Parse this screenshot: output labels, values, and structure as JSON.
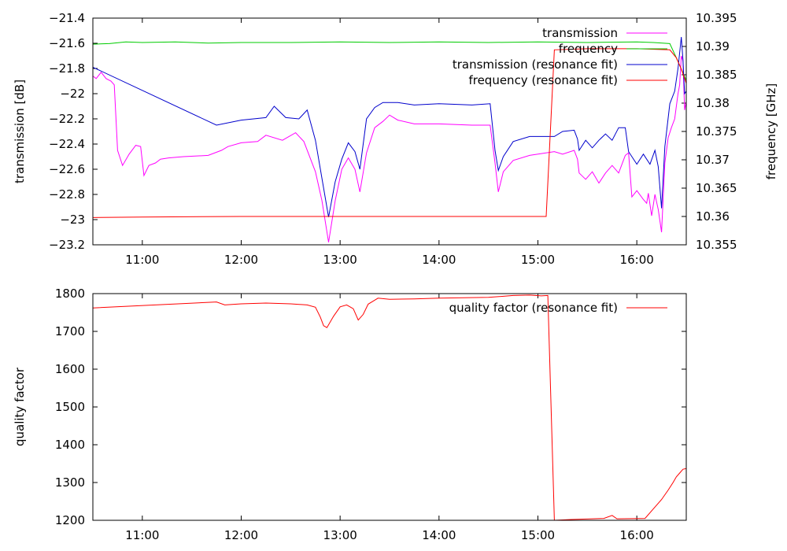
{
  "chart_data": [
    {
      "type": "line",
      "xlabel": "",
      "ylabel": "transmission [dB]",
      "y2label": "frequency [GHz]",
      "xlim": [
        "10:30",
        "16:30"
      ],
      "ylim": [
        -23.2,
        -21.4
      ],
      "y2lim": [
        10.355,
        10.395
      ],
      "x_ticks": [
        "11:00",
        "12:00",
        "13:00",
        "14:00",
        "15:00",
        "16:00"
      ],
      "y_ticks": [
        "-21.4",
        "-21.6",
        "-21.8",
        "-22",
        "-22.2",
        "-22.4",
        "-22.6",
        "-22.8",
        "-23",
        "-23.2"
      ],
      "y2_ticks": [
        "10.395",
        "10.39",
        "10.385",
        "10.38",
        "10.375",
        "10.37",
        "10.365",
        "10.36",
        "10.355"
      ],
      "legend_position": "top-right",
      "series": [
        {
          "name": "transmission",
          "axis": "y",
          "color": "#ff00ff",
          "points": [
            [
              "10:30",
              -21.86
            ],
            [
              "10:32",
              -21.88
            ],
            [
              "10:35",
              -21.83
            ],
            [
              "10:38",
              -21.88
            ],
            [
              "10:41",
              -21.9
            ],
            [
              "10:43",
              -21.93
            ],
            [
              "10:45",
              -22.45
            ],
            [
              "10:48",
              -22.57
            ],
            [
              "10:52",
              -22.48
            ],
            [
              "10:56",
              -22.41
            ],
            [
              "10:59",
              -22.42
            ],
            [
              "11:01",
              -22.65
            ],
            [
              "11:04",
              -22.57
            ],
            [
              "11:08",
              -22.55
            ],
            [
              "11:11",
              -22.52
            ],
            [
              "11:16",
              -22.51
            ],
            [
              "11:25",
              -22.5
            ],
            [
              "11:40",
              -22.49
            ],
            [
              "11:48",
              -22.45
            ],
            [
              "11:52",
              -22.42
            ],
            [
              "12:00",
              -22.39
            ],
            [
              "12:10",
              -22.38
            ],
            [
              "12:15",
              -22.33
            ],
            [
              "12:25",
              -22.37
            ],
            [
              "12:33",
              -22.31
            ],
            [
              "12:38",
              -22.38
            ],
            [
              "12:45",
              -22.62
            ],
            [
              "12:49",
              -22.85
            ],
            [
              "12:53",
              -23.18
            ],
            [
              "12:57",
              -22.85
            ],
            [
              "13:01",
              -22.6
            ],
            [
              "13:05",
              -22.51
            ],
            [
              "13:09",
              -22.6
            ],
            [
              "13:12",
              -22.78
            ],
            [
              "13:16",
              -22.47
            ],
            [
              "13:21",
              -22.27
            ],
            [
              "13:26",
              -22.22
            ],
            [
              "13:30",
              -22.17
            ],
            [
              "13:35",
              -22.21
            ],
            [
              "13:45",
              -22.24
            ],
            [
              "14:00",
              -22.24
            ],
            [
              "14:20",
              -22.25
            ],
            [
              "14:31",
              -22.25
            ],
            [
              "14:34",
              -22.55
            ],
            [
              "14:36",
              -22.78
            ],
            [
              "14:39",
              -22.62
            ],
            [
              "14:45",
              -22.53
            ],
            [
              "14:55",
              -22.49
            ],
            [
              "15:10",
              -22.46
            ],
            [
              "15:15",
              -22.48
            ],
            [
              "15:22",
              -22.45
            ],
            [
              "15:24",
              -22.52
            ],
            [
              "15:25",
              -22.63
            ],
            [
              "15:29",
              -22.68
            ],
            [
              "15:33",
              -22.62
            ],
            [
              "15:37",
              -22.71
            ],
            [
              "15:41",
              -22.63
            ],
            [
              "15:45",
              -22.57
            ],
            [
              "15:49",
              -22.63
            ],
            [
              "15:53",
              -22.49
            ],
            [
              "15:55",
              -22.47
            ],
            [
              "15:57",
              -22.82
            ],
            [
              "16:00",
              -22.77
            ],
            [
              "16:04",
              -22.84
            ],
            [
              "16:06",
              -22.87
            ],
            [
              "16:07",
              -22.79
            ],
            [
              "16:09",
              -22.97
            ],
            [
              "16:11",
              -22.8
            ],
            [
              "16:13",
              -22.92
            ],
            [
              "16:15",
              -23.1
            ],
            [
              "16:17",
              -22.55
            ],
            [
              "16:19",
              -22.35
            ],
            [
              "16:21",
              -22.27
            ],
            [
              "16:23",
              -22.2
            ],
            [
              "16:25",
              -22.0
            ],
            [
              "16:26",
              -21.93
            ],
            [
              "16:27",
              -21.7
            ],
            [
              "16:28",
              -21.74
            ],
            [
              "16:29",
              -22.13
            ],
            [
              "16:30",
              -22.06
            ]
          ]
        },
        {
          "name": "frequency",
          "axis": "y2",
          "color": "#00cc00",
          "points": [
            [
              "10:30",
              10.3904
            ],
            [
              "10:40",
              10.3905
            ],
            [
              "10:50",
              10.3908
            ],
            [
              "11:00",
              10.3907
            ],
            [
              "11:20",
              10.3908
            ],
            [
              "11:40",
              10.3906
            ],
            [
              "12:00",
              10.3907
            ],
            [
              "12:30",
              10.3907
            ],
            [
              "13:00",
              10.3908
            ],
            [
              "13:30",
              10.3907
            ],
            [
              "14:00",
              10.3908
            ],
            [
              "14:30",
              10.3907
            ],
            [
              "15:00",
              10.3908
            ],
            [
              "15:30",
              10.3907
            ],
            [
              "16:00",
              10.3908
            ],
            [
              "16:10",
              10.3907
            ],
            [
              "16:20",
              10.3905
            ],
            [
              "16:24",
              10.388
            ],
            [
              "16:27",
              10.386
            ],
            [
              "16:30",
              10.384
            ]
          ]
        },
        {
          "name": "transmission (resonance fit)",
          "axis": "y",
          "color": "#0000cc",
          "points": [
            [
              "10:30",
              -21.79
            ],
            [
              "11:45",
              -22.25
            ],
            [
              "12:00",
              -22.21
            ],
            [
              "12:15",
              -22.19
            ],
            [
              "12:20",
              -22.1
            ],
            [
              "12:27",
              -22.19
            ],
            [
              "12:35",
              -22.2
            ],
            [
              "12:40",
              -22.13
            ],
            [
              "12:45",
              -22.37
            ],
            [
              "12:50",
              -22.75
            ],
            [
              "12:53",
              -22.98
            ],
            [
              "12:57",
              -22.7
            ],
            [
              "13:01",
              -22.52
            ],
            [
              "13:05",
              -22.39
            ],
            [
              "13:09",
              -22.46
            ],
            [
              "13:12",
              -22.6
            ],
            [
              "13:16",
              -22.2
            ],
            [
              "13:21",
              -22.11
            ],
            [
              "13:26",
              -22.07
            ],
            [
              "13:35",
              -22.07
            ],
            [
              "13:45",
              -22.09
            ],
            [
              "14:00",
              -22.08
            ],
            [
              "14:20",
              -22.09
            ],
            [
              "14:31",
              -22.08
            ],
            [
              "14:34",
              -22.45
            ],
            [
              "14:36",
              -22.61
            ],
            [
              "14:39",
              -22.5
            ],
            [
              "14:45",
              -22.38
            ],
            [
              "14:55",
              -22.34
            ],
            [
              "15:10",
              -22.34
            ],
            [
              "15:15",
              -22.3
            ],
            [
              "15:22",
              -22.29
            ],
            [
              "15:24",
              -22.36
            ],
            [
              "15:25",
              -22.45
            ],
            [
              "15:29",
              -22.37
            ],
            [
              "15:33",
              -22.43
            ],
            [
              "15:37",
              -22.37
            ],
            [
              "15:41",
              -22.32
            ],
            [
              "15:45",
              -22.37
            ],
            [
              "15:49",
              -22.27
            ],
            [
              "15:53",
              -22.27
            ],
            [
              "15:55",
              -22.46
            ],
            [
              "16:00",
              -22.56
            ],
            [
              "16:04",
              -22.48
            ],
            [
              "16:08",
              -22.56
            ],
            [
              "16:11",
              -22.45
            ],
            [
              "16:13",
              -22.58
            ],
            [
              "16:15",
              -22.91
            ],
            [
              "16:17",
              -22.42
            ],
            [
              "16:20",
              -22.08
            ],
            [
              "16:23",
              -21.98
            ],
            [
              "16:25",
              -21.8
            ],
            [
              "16:27",
              -21.55
            ],
            [
              "16:28",
              -21.73
            ],
            [
              "16:29",
              -22.0
            ],
            [
              "16:30",
              -21.98
            ]
          ]
        },
        {
          "name": "frequency (resonance fit)",
          "axis": "y2",
          "color": "#ff0000",
          "points": [
            [
              "10:30",
              10.3598
            ],
            [
              "11:00",
              10.3599
            ],
            [
              "12:00",
              10.36
            ],
            [
              "13:00",
              10.36
            ],
            [
              "14:00",
              10.36
            ],
            [
              "14:30",
              10.36
            ],
            [
              "15:05",
              10.36
            ],
            [
              "15:10",
              10.3894
            ],
            [
              "15:30",
              10.3896
            ],
            [
              "16:00",
              10.3896
            ],
            [
              "16:20",
              10.3894
            ],
            [
              "16:24",
              10.388
            ],
            [
              "16:27",
              10.386
            ],
            [
              "16:30",
              10.3835
            ]
          ]
        }
      ]
    },
    {
      "type": "line",
      "xlabel": "",
      "ylabel": "quality factor",
      "xlim": [
        "10:30",
        "16:30"
      ],
      "ylim": [
        1200,
        1800
      ],
      "x_ticks": [
        "11:00",
        "12:00",
        "13:00",
        "14:00",
        "15:00",
        "16:00"
      ],
      "y_ticks": [
        "1800",
        "1700",
        "1600",
        "1500",
        "1400",
        "1300",
        "1200"
      ],
      "legend_position": "top-right",
      "series": [
        {
          "name": "quality factor (resonance fit)",
          "axis": "y",
          "color": "#ff0000",
          "points": [
            [
              "10:30",
              1762
            ],
            [
              "11:45",
              1778
            ],
            [
              "11:50",
              1770
            ],
            [
              "12:00",
              1773
            ],
            [
              "12:15",
              1775
            ],
            [
              "12:30",
              1773
            ],
            [
              "12:40",
              1770
            ],
            [
              "12:45",
              1764
            ],
            [
              "12:48",
              1738
            ],
            [
              "12:50",
              1715
            ],
            [
              "12:52",
              1710
            ],
            [
              "12:56",
              1740
            ],
            [
              "13:00",
              1765
            ],
            [
              "13:04",
              1770
            ],
            [
              "13:08",
              1760
            ],
            [
              "13:11",
              1730
            ],
            [
              "13:14",
              1745
            ],
            [
              "13:17",
              1772
            ],
            [
              "13:23",
              1788
            ],
            [
              "13:30",
              1785
            ],
            [
              "13:45",
              1786
            ],
            [
              "14:00",
              1788
            ],
            [
              "14:30",
              1790
            ],
            [
              "14:45",
              1795
            ],
            [
              "14:55",
              1796
            ],
            [
              "15:02",
              1794
            ],
            [
              "15:06",
              1795
            ],
            [
              "15:10",
              1200
            ],
            [
              "15:20",
              1202
            ],
            [
              "15:40",
              1205
            ],
            [
              "15:45",
              1213
            ],
            [
              "15:48",
              1204
            ],
            [
              "16:05",
              1205
            ],
            [
              "16:10",
              1230
            ],
            [
              "16:15",
              1255
            ],
            [
              "16:19",
              1280
            ],
            [
              "16:22",
              1300
            ],
            [
              "16:24",
              1315
            ],
            [
              "16:26",
              1325
            ],
            [
              "16:28",
              1335
            ],
            [
              "16:30",
              1337
            ]
          ]
        }
      ]
    }
  ]
}
